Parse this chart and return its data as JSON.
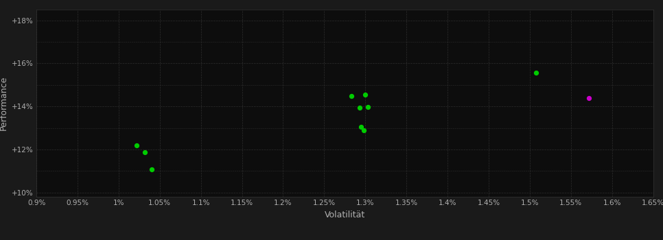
{
  "xlabel": "Volatilität",
  "ylabel": "Performance",
  "background_color": "#1a1a1a",
  "plot_bg_color": "#0d0d0d",
  "grid_color": "#2d2d2d",
  "text_color": "#b0b0b0",
  "xlim": [
    0.009,
    0.0165
  ],
  "ylim": [
    0.098,
    0.185
  ],
  "xticks": [
    0.009,
    0.0095,
    0.01,
    0.0105,
    0.011,
    0.0115,
    0.012,
    0.0125,
    0.013,
    0.0135,
    0.014,
    0.0145,
    0.015,
    0.0155,
    0.016,
    0.0165
  ],
  "yticks": [
    0.1,
    0.12,
    0.14,
    0.16,
    0.18
  ],
  "scatter_green": [
    [
      0.01022,
      0.1218
    ],
    [
      0.01032,
      0.1188
    ],
    [
      0.0104,
      0.1108
    ],
    [
      0.01295,
      0.1305
    ],
    [
      0.01283,
      0.1447
    ],
    [
      0.013,
      0.1455
    ],
    [
      0.01293,
      0.1393
    ],
    [
      0.01303,
      0.1397
    ],
    [
      0.01298,
      0.1288
    ],
    [
      0.01508,
      0.1558
    ]
  ],
  "scatter_purple": [
    [
      0.01572,
      0.1438
    ]
  ],
  "dot_size": 18,
  "green_color": "#00cc00",
  "purple_color": "#cc00cc"
}
